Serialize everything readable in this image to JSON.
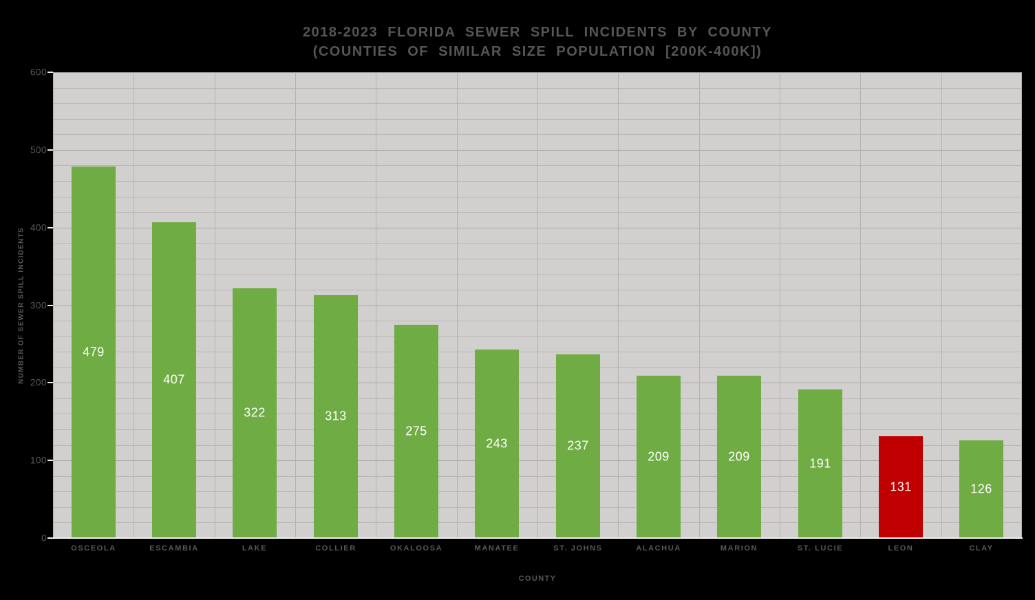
{
  "page": {
    "background_color": "#000000"
  },
  "chart_data": {
    "type": "bar",
    "title": "2018-2023 FLORIDA SEWER SPILL INCIDENTS BY COUNTY",
    "subtitle": "(COUNTIES OF SIMILAR SIZE POPULATION [200K-400K])",
    "xlabel": "COUNTY",
    "ylabel": "NUMBER OF SEWER SPILL INCIDENTS",
    "categories": [
      "OSCEOLA",
      "ESCAMBIA",
      "LAKE",
      "COLLIER",
      "OKALOOSA",
      "MANATEE",
      "ST. JOHNS",
      "ALACHUA",
      "MARION",
      "ST. LUCIE",
      "LEON",
      "CLAY"
    ],
    "values": [
      479,
      407,
      322,
      313,
      275,
      243,
      237,
      209,
      209,
      191,
      131,
      126
    ],
    "bar_colors": [
      "#6FAC44",
      "#6FAC44",
      "#6FAC44",
      "#6FAC44",
      "#6FAC44",
      "#6FAC44",
      "#6FAC44",
      "#6FAC44",
      "#6FAC44",
      "#6FAC44",
      "#C00000",
      "#6FAC44"
    ],
    "highlighted_category": "LEON",
    "highlight_color": "#C00000",
    "default_bar_color": "#6FAC44",
    "value_labels_shown": true,
    "value_label_position": "center-inside",
    "legend": false,
    "ylim": [
      0,
      600
    ],
    "y_ticks": [
      0,
      100,
      200,
      300,
      400,
      500,
      600
    ],
    "y_major_step": 100,
    "y_minor_step": 20,
    "grid": true,
    "colors": {
      "plot_background": "#D2CFCF",
      "grid_minor": "#B9B6B6",
      "grid_major": "#A8A5A5",
      "grid_vertical": "#B4B1B1",
      "axis_line": "#EDECEC",
      "tick_mark": "#F1F0F0",
      "axis_text": "#595959",
      "title_text": "#565656",
      "value_label_text": "#FFFFFF"
    }
  }
}
